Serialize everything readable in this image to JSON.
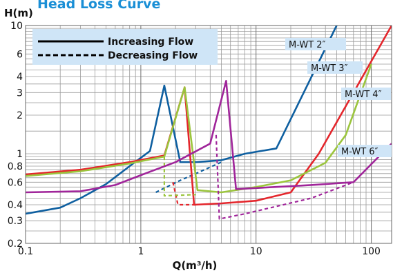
{
  "chart_data": {
    "type": "line",
    "title": "Head Loss Curve",
    "xlabel": "Q(m³/h)",
    "ylabel": "H(m)",
    "xscale": "log",
    "yscale": "log",
    "xlim": [
      0.1,
      150
    ],
    "ylim": [
      0.2,
      10
    ],
    "grid": true,
    "x_major_ticks": [
      {
        "value": 0.1,
        "label": "0.1"
      },
      {
        "value": 1,
        "label": "1"
      },
      {
        "value": 10,
        "label": "10"
      },
      {
        "value": 100,
        "label": "100"
      }
    ],
    "x_minor_ticks": [
      0.2,
      0.3,
      0.4,
      0.5,
      0.6,
      0.7,
      0.8,
      0.9,
      2,
      3,
      4,
      5,
      6,
      7,
      8,
      9,
      20,
      30,
      40,
      50,
      60,
      70,
      80,
      90
    ],
    "y_ticks": [
      {
        "value": 0.2,
        "label": "0.2"
      },
      {
        "value": 0.3,
        "label": "0.3"
      },
      {
        "value": 0.4,
        "label": "0.4"
      },
      {
        "value": 0.6,
        "label": "0.6"
      },
      {
        "value": 0.8,
        "label": "0.8"
      },
      {
        "value": 1,
        "label": "1"
      },
      {
        "value": 2,
        "label": "2"
      },
      {
        "value": 3,
        "label": "3"
      },
      {
        "value": 4,
        "label": "4"
      },
      {
        "value": 6,
        "label": "6"
      },
      {
        "value": 10,
        "label": "10"
      }
    ],
    "y_gridlines": [
      0.2,
      0.25,
      0.3,
      0.35,
      0.4,
      0.45,
      0.5,
      0.55,
      0.6,
      0.65,
      0.7,
      0.75,
      0.8,
      0.85,
      0.9,
      0.95,
      1,
      1.5,
      2,
      2.5,
      3,
      3.5,
      4,
      4.5,
      5,
      5.5,
      6,
      6.5,
      7,
      7.5,
      8,
      8.5,
      9,
      9.5,
      10
    ],
    "legend": {
      "placement": "top-left",
      "entries": [
        {
          "label": "Increasing Flow",
          "style": "solid"
        },
        {
          "label": "Decreasing Flow",
          "style": "dashed"
        }
      ]
    },
    "series": [
      {
        "name": "M-WT 2″",
        "color": "#0e5fa0",
        "increasing": [
          [
            0.1,
            0.34
          ],
          [
            0.2,
            0.38
          ],
          [
            0.3,
            0.45
          ],
          [
            0.5,
            0.58
          ],
          [
            0.8,
            0.8
          ],
          [
            1.2,
            1.05
          ],
          [
            1.6,
            3.4
          ],
          [
            2.2,
            0.86
          ],
          [
            3,
            0.86
          ],
          [
            5,
            0.89
          ],
          [
            8,
            1.0
          ],
          [
            15,
            1.1
          ],
          [
            50,
            10
          ]
        ],
        "decreasing": [
          [
            1.35,
            0.5
          ],
          [
            2.2,
            0.62
          ],
          [
            3,
            0.7
          ],
          [
            5,
            0.86
          ]
        ]
      },
      {
        "name": "M-WT 3″",
        "color": "#e4262c",
        "increasing": [
          [
            0.1,
            0.69
          ],
          [
            0.3,
            0.75
          ],
          [
            0.8,
            0.86
          ],
          [
            1.6,
            0.97
          ],
          [
            2.4,
            3.3
          ],
          [
            2.9,
            0.4
          ],
          [
            5,
            0.41
          ],
          [
            10,
            0.43
          ],
          [
            20,
            0.5
          ],
          [
            35,
            1.0
          ],
          [
            150,
            10
          ]
        ],
        "decreasing": [
          [
            1.9,
            0.6
          ],
          [
            2.1,
            0.4
          ],
          [
            3,
            0.4
          ]
        ]
      },
      {
        "name": "M-WT 4″",
        "color": "#9bc53d",
        "increasing": [
          [
            0.1,
            0.67
          ],
          [
            0.3,
            0.73
          ],
          [
            0.8,
            0.84
          ],
          [
            1.6,
            0.95
          ],
          [
            2.4,
            3.3
          ],
          [
            3.1,
            0.52
          ],
          [
            5,
            0.5
          ],
          [
            10,
            0.55
          ],
          [
            20,
            0.62
          ],
          [
            40,
            0.85
          ],
          [
            60,
            1.4
          ],
          [
            100,
            5
          ]
        ],
        "decreasing": [
          [
            1.6,
            0.95
          ],
          [
            1.6,
            0.47
          ],
          [
            3,
            0.48
          ]
        ]
      },
      {
        "name": "M-WT 6″",
        "color": "#a0259a",
        "increasing": [
          [
            0.1,
            0.5
          ],
          [
            0.3,
            0.51
          ],
          [
            0.6,
            0.57
          ],
          [
            1,
            0.68
          ],
          [
            2,
            0.86
          ],
          [
            4,
            1.2
          ],
          [
            5.5,
            3.7
          ],
          [
            6.7,
            0.53
          ],
          [
            10,
            0.54
          ],
          [
            30,
            0.57
          ],
          [
            70,
            0.6
          ],
          [
            150,
            1.2
          ]
        ],
        "decreasing": [
          [
            4.5,
            1.4
          ],
          [
            4.8,
            0.31
          ],
          [
            8,
            0.34
          ],
          [
            30,
            0.45
          ],
          [
            70,
            0.6
          ]
        ]
      }
    ]
  }
}
